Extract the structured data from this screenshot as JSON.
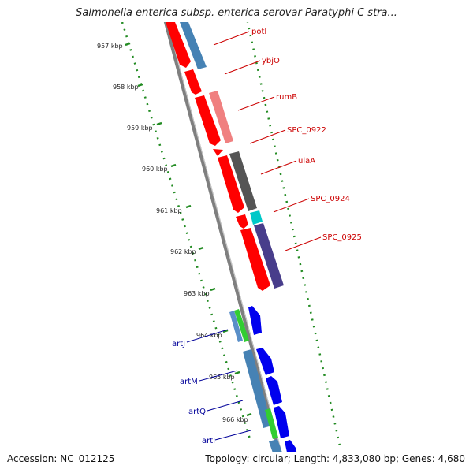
{
  "title": "Salmonella enterica subsp. enterica serovar Paratyphi C stra...",
  "footer": {
    "accession": "Accession: NC_012125",
    "stats": "Topology: circular; Length: 4,833,080 bp; Genes: 4,680"
  },
  "ticks": [
    "957 kbp",
    "958 kbp",
    "959 kbp",
    "960 kbp",
    "961 kbp",
    "962 kbp",
    "963 kbp",
    "964 kbp",
    "965 kbp",
    "966 kbp"
  ],
  "forward_labels": [
    "potI",
    "ybjO",
    "rumB",
    "SPC_0922",
    "ulaA",
    "SPC_0924",
    "SPC_0925"
  ],
  "reverse_labels": [
    "artJ",
    "artM",
    "artQ",
    "artI"
  ],
  "colors": {
    "forward_label": "#cc0000",
    "reverse_label": "#000099",
    "cds_forward": "#ff0000",
    "cds_reverse": "#0000ee",
    "tick_dots": "#228b22",
    "backbone": "#808080"
  }
}
